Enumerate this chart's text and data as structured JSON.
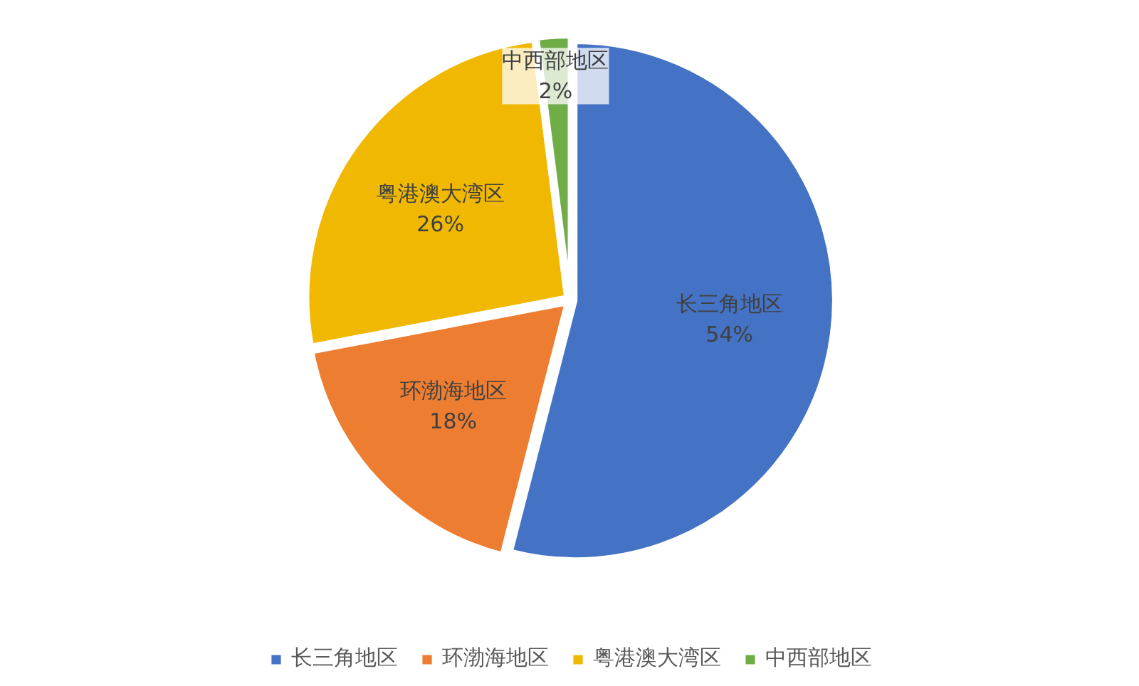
{
  "chart_data": {
    "type": "pie",
    "categories": [
      "长三角地区",
      "环渤海地区",
      "粤港澳大湾区",
      "中西部地区"
    ],
    "values": [
      54,
      18,
      26,
      2
    ],
    "colors": [
      "#4472c4",
      "#ed7d31",
      "#f0b800",
      "#70ad47"
    ],
    "value_labels": [
      "54%",
      "18%",
      "26%",
      "2%"
    ],
    "legend": "bottom"
  }
}
